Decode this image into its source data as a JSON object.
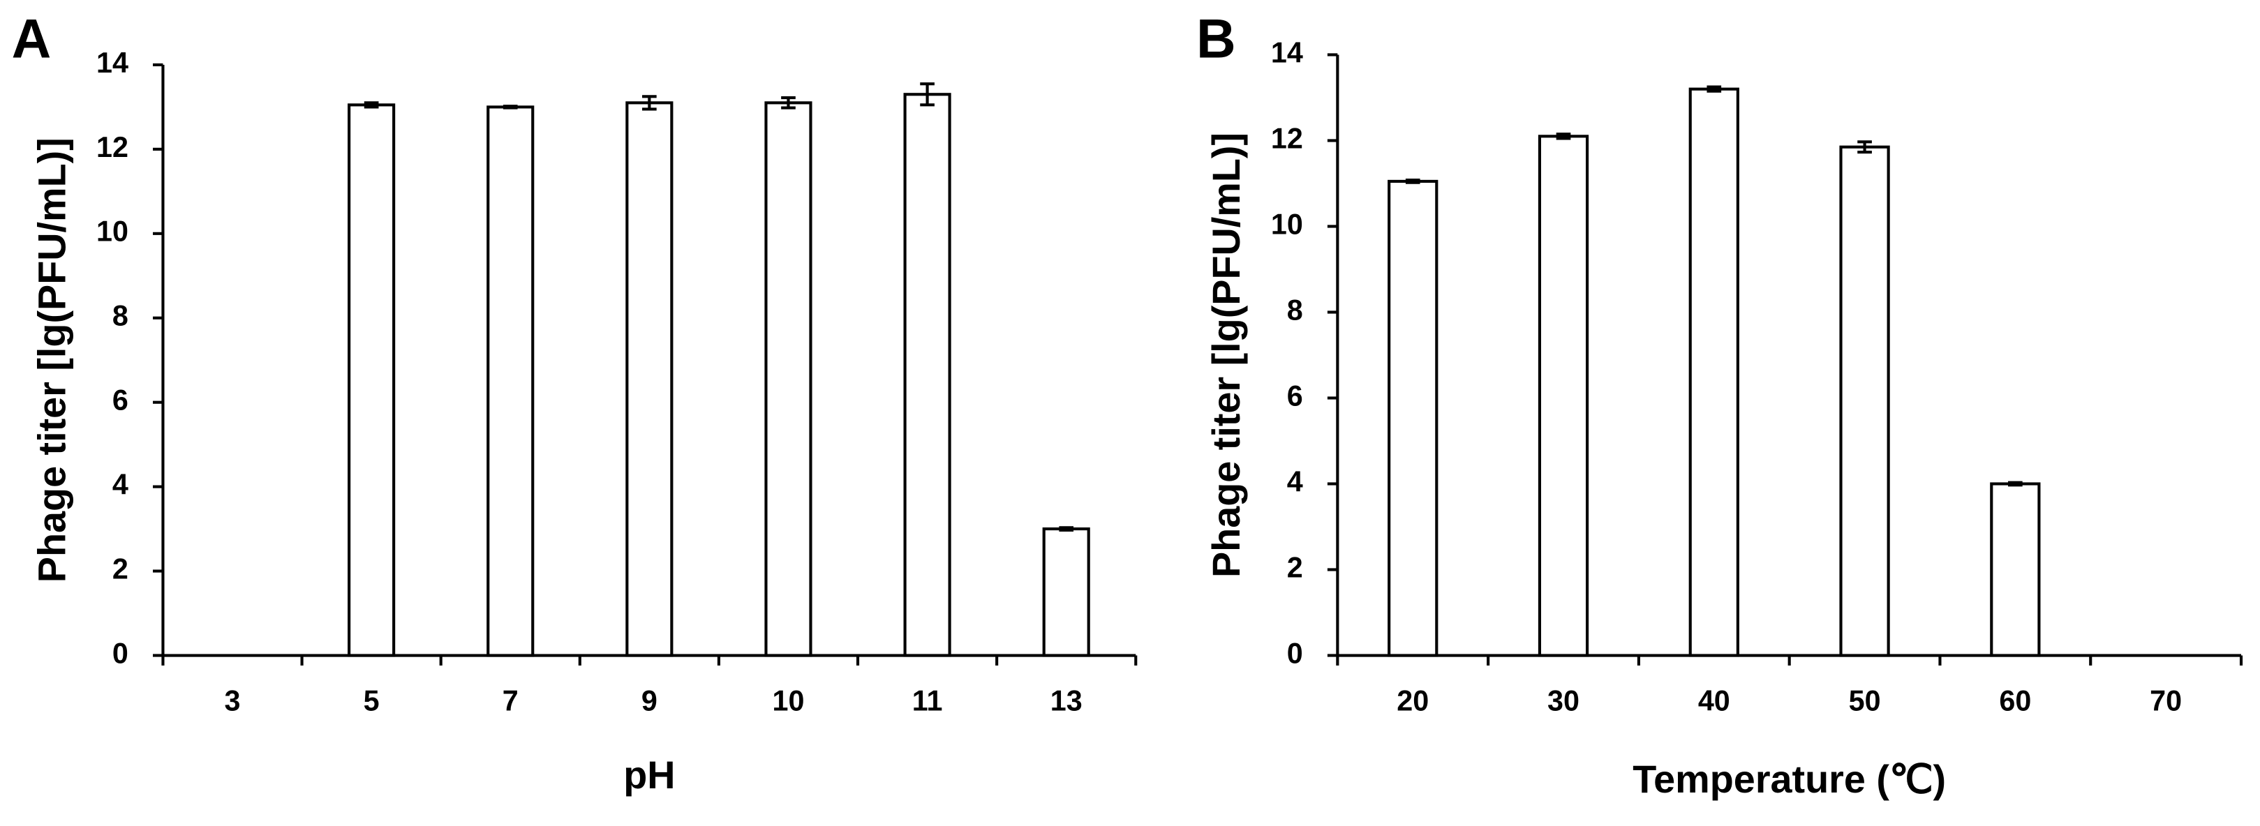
{
  "chart_data": [
    {
      "type": "bar",
      "panel": "A",
      "x_label": "pH",
      "y_label": "Phage titer [lg(PFU/mL)]",
      "categories": [
        "3",
        "5",
        "7",
        "9",
        "10",
        "11",
        "13"
      ],
      "values": [
        0,
        13.05,
        13.0,
        13.1,
        13.1,
        13.3,
        3.0
      ],
      "errors": [
        0,
        0.05,
        0.02,
        0.15,
        0.12,
        0.25,
        0.03
      ],
      "color": "#ffffff",
      "edge_color": "#000000",
      "ylim": [
        0,
        14
      ],
      "yticks": [
        0,
        2,
        4,
        6,
        8,
        10,
        12,
        14
      ]
    },
    {
      "type": "bar",
      "panel": "B",
      "x_label": "Temperature (℃)",
      "y_label": "Phage titer [lg(PFU/mL)]",
      "categories": [
        "20",
        "30",
        "40",
        "50",
        "60",
        "70"
      ],
      "values": [
        11.05,
        12.1,
        13.2,
        11.85,
        4.0,
        0
      ],
      "errors": [
        0.03,
        0.05,
        0.05,
        0.12,
        0.03,
        0
      ],
      "color": "#ffffff",
      "edge_color": "#000000",
      "ylim": [
        0,
        14
      ],
      "yticks": [
        0,
        2,
        4,
        6,
        8,
        10,
        12,
        14
      ]
    }
  ]
}
